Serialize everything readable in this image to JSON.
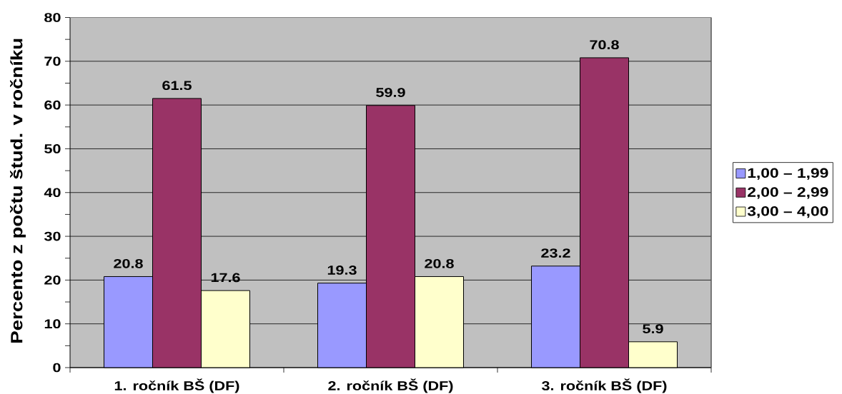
{
  "chart_data": {
    "type": "bar",
    "categories": [
      "1. ročník BŠ (DF)",
      "2. ročník BŠ (DF)",
      "3. ročník BŠ (DF)"
    ],
    "ylabel": "Percento z počtu štud. v ročníku",
    "series": [
      {
        "name": "1,00 – 1,99",
        "color": "#9999ff",
        "values": [
          20.8,
          19.3,
          23.2
        ]
      },
      {
        "name": "2,00 – 2,99",
        "color": "#993366",
        "values": [
          61.5,
          59.9,
          70.8
        ]
      },
      {
        "name": "3,00 – 4,00",
        "color": "#ffffcc",
        "values": [
          17.6,
          20.8,
          5.9
        ]
      }
    ],
    "ylim": [
      0,
      80
    ],
    "yticks": [
      0,
      {
        "value": 5,
        "label": null
      },
      10,
      {
        "value": 15,
        "label": null
      },
      20,
      {
        "value": 25,
        "label": null
      },
      30,
      {
        "value": 35,
        "label": null
      },
      40,
      {
        "value": 45,
        "label": null
      },
      50,
      {
        "value": 55,
        "label": null
      },
      60,
      {
        "value": 65,
        "label": null
      },
      70,
      {
        "value": 75,
        "label": null
      },
      80
    ],
    "grid": "y",
    "legend": "right",
    "data_labels": true
  }
}
